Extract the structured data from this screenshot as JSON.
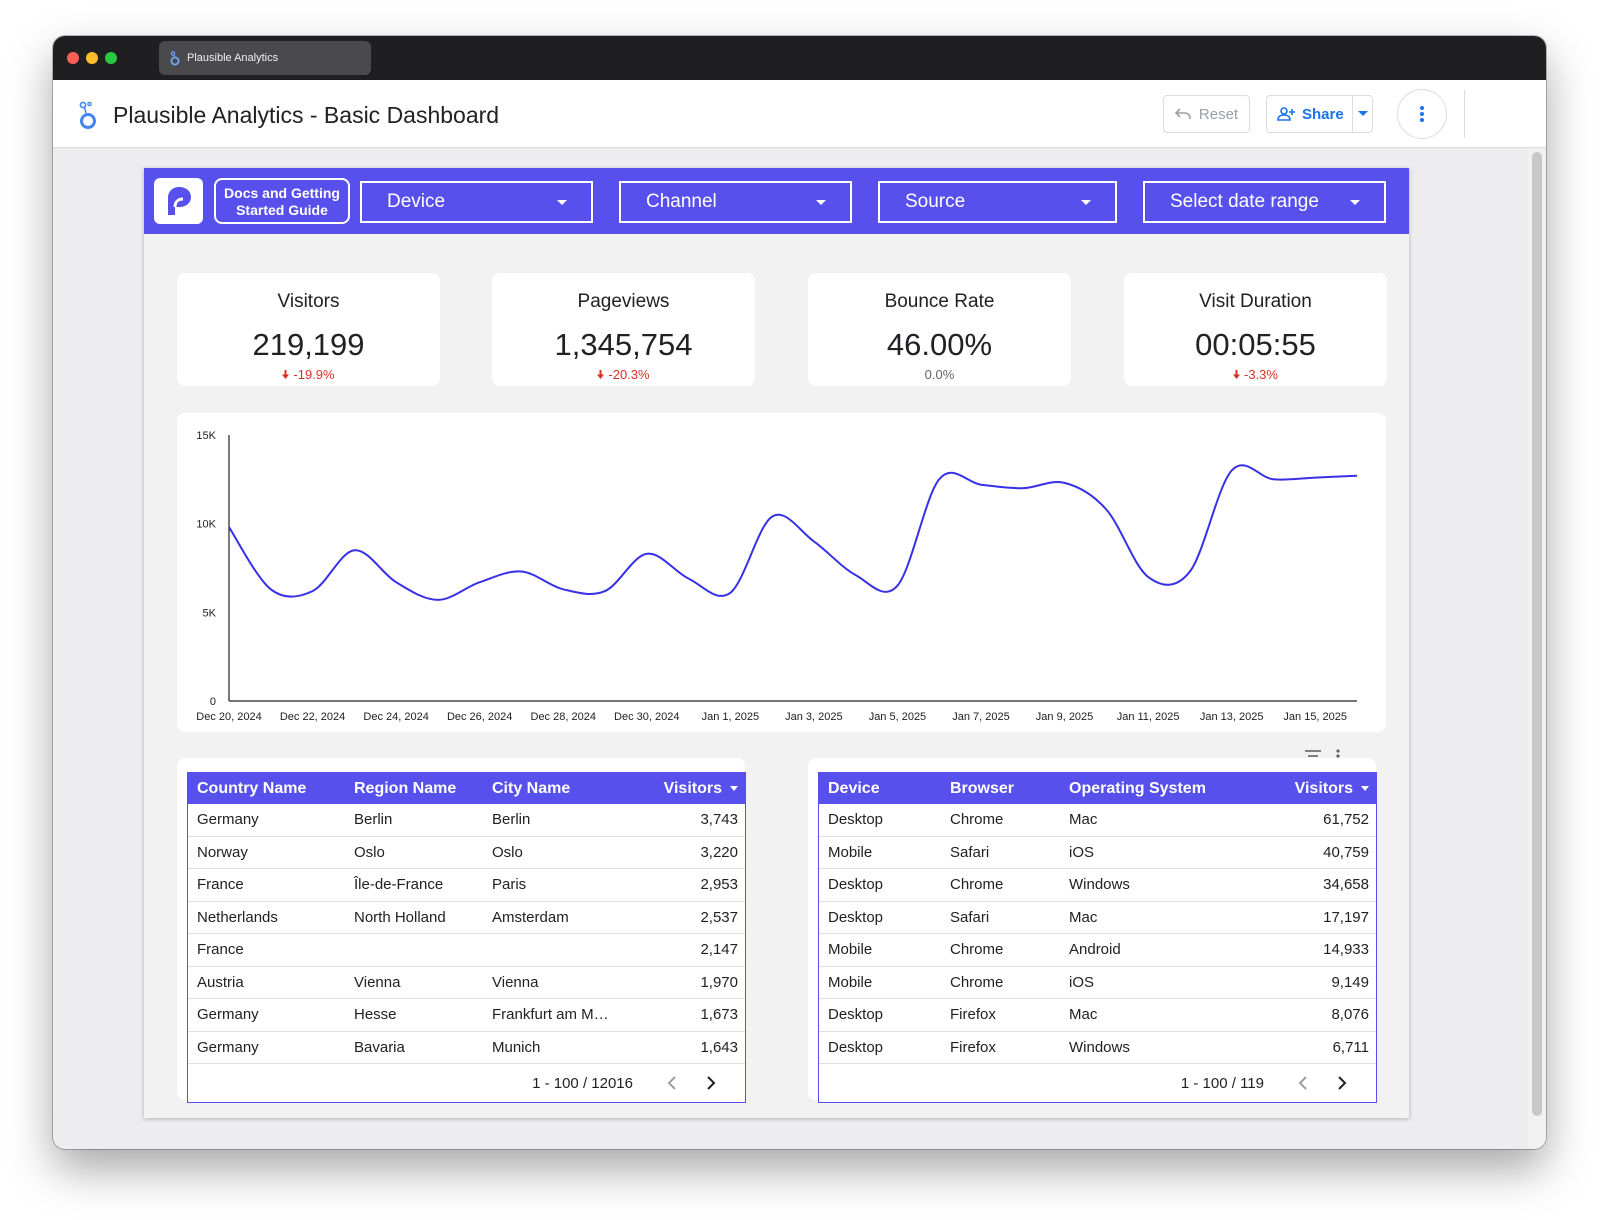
{
  "browser": {
    "tab_title": "Plausible Analytics"
  },
  "app": {
    "title": "Plausible Analytics - Basic Dashboard",
    "reset_label": "Reset",
    "share_label": "Share"
  },
  "filters": {
    "docs_line1": "Docs and Getting",
    "docs_line2": "Started Guide",
    "device": "Device",
    "channel": "Channel",
    "source": "Source",
    "date_range": "Select date range"
  },
  "kpis": [
    {
      "label": "Visitors",
      "value": "219,199",
      "delta": "-19.9%"
    },
    {
      "label": "Pageviews",
      "value": "1,345,754",
      "delta": "-20.3%"
    },
    {
      "label": "Bounce Rate",
      "value": "46.00%",
      "delta": "0.0%"
    },
    {
      "label": "Visit Duration",
      "value": "00:05:55",
      "delta": "-3.3%"
    }
  ],
  "chart_data": {
    "type": "line",
    "x": [
      "Dec 20, 2024",
      "Dec 21, 2024",
      "Dec 22, 2024",
      "Dec 23, 2024",
      "Dec 24, 2024",
      "Dec 25, 2024",
      "Dec 26, 2024",
      "Dec 27, 2024",
      "Dec 28, 2024",
      "Dec 29, 2024",
      "Dec 30, 2024",
      "Dec 31, 2024",
      "Jan 1, 2025",
      "Jan 2, 2025",
      "Jan 3, 2025",
      "Jan 4, 2025",
      "Jan 5, 2025",
      "Jan 6, 2025",
      "Jan 7, 2025",
      "Jan 8, 2025",
      "Jan 9, 2025",
      "Jan 10, 2025",
      "Jan 11, 2025",
      "Jan 12, 2025",
      "Jan 13, 2025",
      "Jan 14, 2025",
      "Jan 15, 2025",
      "Jan 16, 2025"
    ],
    "series": [
      {
        "values": [
          9800,
          6300,
          6200,
          8500,
          6700,
          5700,
          6700,
          7300,
          6300,
          6200,
          8300,
          6900,
          6100,
          10400,
          9000,
          7100,
          6500,
          12500,
          12200,
          12000,
          12300,
          10800,
          7000,
          7300,
          13000,
          12500,
          12600,
          12700
        ]
      }
    ],
    "x_tick_labels": [
      "Dec 20, 2024",
      "Dec 22, 2024",
      "Dec 24, 2024",
      "Dec 26, 2024",
      "Dec 28, 2024",
      "Dec 30, 2024",
      "Jan 1, 2025",
      "Jan 3, 2025",
      "Jan 5, 2025",
      "Jan 7, 2025",
      "Jan 9, 2025",
      "Jan 11, 2025",
      "Jan 13, 2025",
      "Jan 15, 2025"
    ],
    "y_tick_labels": [
      "0",
      "5K",
      "10K",
      "15K"
    ],
    "y_ticks": [
      0,
      5000,
      10000,
      15000
    ],
    "ylim": [
      0,
      15000
    ],
    "line_color": "#3730e6",
    "grid": false
  },
  "geo_table": {
    "columns": [
      "Country Name",
      "Region Name",
      "City Name",
      "Visitors"
    ],
    "rows": [
      [
        "Germany",
        "Berlin",
        "Berlin",
        "3,743"
      ],
      [
        "Norway",
        "Oslo",
        "Oslo",
        "3,220"
      ],
      [
        "France",
        "Île-de-France",
        "Paris",
        "2,953"
      ],
      [
        "Netherlands",
        "North Holland",
        "Amsterdam",
        "2,537"
      ],
      [
        "France",
        "",
        "",
        "2,147"
      ],
      [
        "Austria",
        "Vienna",
        "Vienna",
        "1,970"
      ],
      [
        "Germany",
        "Hesse",
        "Frankfurt am M…",
        "1,673"
      ],
      [
        "Germany",
        "Bavaria",
        "Munich",
        "1,643"
      ]
    ],
    "pagination": "1 - 100 / 12016"
  },
  "device_table": {
    "columns": [
      "Device",
      "Browser",
      "Operating System",
      "Visitors"
    ],
    "rows": [
      [
        "Desktop",
        "Chrome",
        "Mac",
        "61,752"
      ],
      [
        "Mobile",
        "Safari",
        "iOS",
        "40,759"
      ],
      [
        "Desktop",
        "Chrome",
        "Windows",
        "34,658"
      ],
      [
        "Desktop",
        "Safari",
        "Mac",
        "17,197"
      ],
      [
        "Mobile",
        "Chrome",
        "Android",
        "14,933"
      ],
      [
        "Mobile",
        "Chrome",
        "iOS",
        "9,149"
      ],
      [
        "Desktop",
        "Firefox",
        "Mac",
        "8,076"
      ],
      [
        "Desktop",
        "Firefox",
        "Windows",
        "6,711"
      ]
    ],
    "pagination": "1 - 100 / 119"
  },
  "colors": {
    "brand": "#5850ec",
    "negative": "#d93025",
    "link": "#1a73e8"
  }
}
